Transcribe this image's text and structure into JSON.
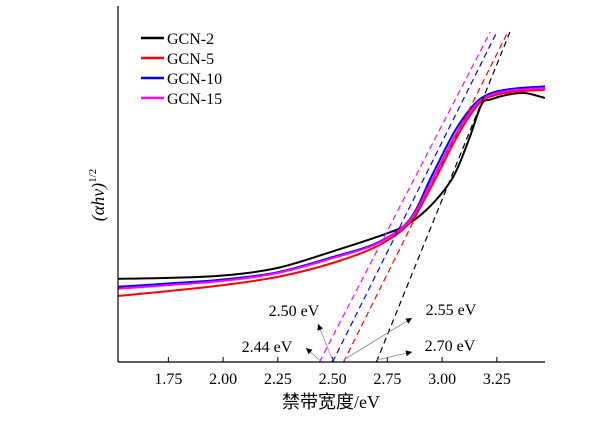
{
  "chart_data": {
    "type": "line",
    "xlabel": "禁带宽度/eV",
    "ylabel_main": "(αhv)",
    "ylabel_sup": "1/2",
    "xlim": [
      1.52,
      3.47
    ],
    "ylim": [
      0,
      1
    ],
    "x_ticks": [
      1.75,
      2.0,
      2.25,
      2.5,
      2.75,
      3.0,
      3.25
    ],
    "x_tick_labels": [
      "1.75",
      "2.00",
      "2.25",
      "2.50",
      "2.75",
      "3.00",
      "3.25"
    ],
    "legend_position": "top-left",
    "series": [
      {
        "name": "GCN-2",
        "color": "#000000",
        "points": [
          [
            1.52,
            0.252
          ],
          [
            1.75,
            0.255
          ],
          [
            2.0,
            0.262
          ],
          [
            2.25,
            0.285
          ],
          [
            2.5,
            0.335
          ],
          [
            2.75,
            0.39
          ],
          [
            2.85,
            0.42
          ],
          [
            2.95,
            0.475
          ],
          [
            3.05,
            0.56
          ],
          [
            3.12,
            0.67
          ],
          [
            3.18,
            0.78
          ],
          [
            3.22,
            0.795
          ],
          [
            3.3,
            0.81
          ],
          [
            3.38,
            0.815
          ],
          [
            3.47,
            0.8
          ]
        ],
        "tangent": {
          "x_intercept": 2.7,
          "points": [
            [
              2.7,
              0.0
            ],
            [
              3.31,
              1.0
            ]
          ]
        }
      },
      {
        "name": "GCN-5",
        "color": "#ff0000",
        "points": [
          [
            1.52,
            0.2
          ],
          [
            1.75,
            0.215
          ],
          [
            2.0,
            0.233
          ],
          [
            2.25,
            0.258
          ],
          [
            2.5,
            0.3
          ],
          [
            2.7,
            0.35
          ],
          [
            2.85,
            0.42
          ],
          [
            2.95,
            0.53
          ],
          [
            3.05,
            0.66
          ],
          [
            3.12,
            0.74
          ],
          [
            3.18,
            0.79
          ],
          [
            3.25,
            0.81
          ],
          [
            3.35,
            0.82
          ],
          [
            3.47,
            0.825
          ]
        ],
        "tangent": {
          "x_intercept": 2.55,
          "points": [
            [
              2.55,
              0.0
            ],
            [
              3.3,
              1.0
            ]
          ]
        }
      },
      {
        "name": "GCN-10",
        "color": "#0000ff",
        "points": [
          [
            1.52,
            0.228
          ],
          [
            1.75,
            0.238
          ],
          [
            2.0,
            0.25
          ],
          [
            2.25,
            0.272
          ],
          [
            2.5,
            0.318
          ],
          [
            2.7,
            0.36
          ],
          [
            2.85,
            0.43
          ],
          [
            2.95,
            0.56
          ],
          [
            3.05,
            0.69
          ],
          [
            3.12,
            0.76
          ],
          [
            3.18,
            0.8
          ],
          [
            3.25,
            0.82
          ],
          [
            3.35,
            0.83
          ],
          [
            3.47,
            0.835
          ]
        ],
        "tangent": {
          "x_intercept": 2.5,
          "points": [
            [
              2.5,
              0.0
            ],
            [
              3.25,
              1.0
            ]
          ]
        }
      },
      {
        "name": "GCN-15",
        "color": "#ff00ff",
        "points": [
          [
            1.52,
            0.222
          ],
          [
            1.75,
            0.233
          ],
          [
            2.0,
            0.246
          ],
          [
            2.25,
            0.27
          ],
          [
            2.5,
            0.315
          ],
          [
            2.7,
            0.358
          ],
          [
            2.85,
            0.428
          ],
          [
            2.95,
            0.545
          ],
          [
            3.05,
            0.675
          ],
          [
            3.12,
            0.75
          ],
          [
            3.18,
            0.795
          ],
          [
            3.25,
            0.815
          ],
          [
            3.35,
            0.825
          ],
          [
            3.47,
            0.83
          ]
        ],
        "tangent": {
          "x_intercept": 2.44,
          "points": [
            [
              2.44,
              0.0
            ],
            [
              3.22,
              1.0
            ]
          ]
        }
      }
    ],
    "annotations": [
      {
        "text": "2.50 eV",
        "target_x": 2.5
      },
      {
        "text": "2.44 eV",
        "target_x": 2.44
      },
      {
        "text": "2.55 eV",
        "target_x": 2.55
      },
      {
        "text": "2.70 eV",
        "target_x": 2.7
      }
    ]
  }
}
